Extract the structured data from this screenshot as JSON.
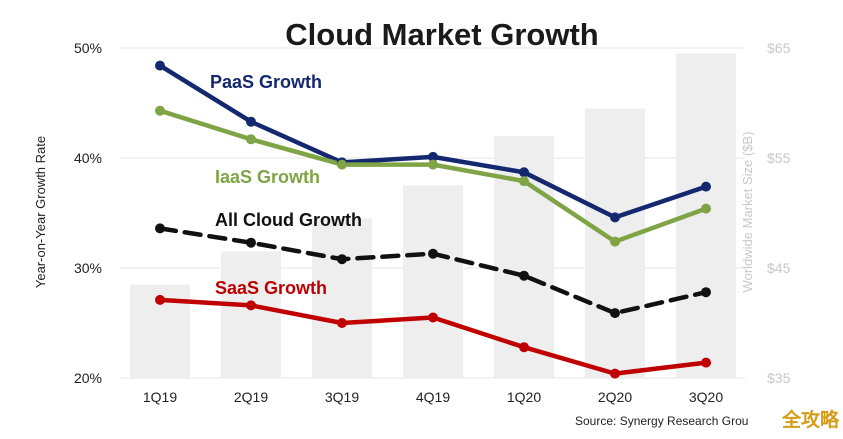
{
  "chart_data": {
    "type": "line",
    "title": "Cloud Market Growth",
    "categories": [
      "1Q19",
      "2Q19",
      "3Q19",
      "4Q19",
      "1Q20",
      "2Q20",
      "3Q20"
    ],
    "ylabel": "Year-on-Year Growth Rate",
    "ylim": [
      20,
      50
    ],
    "yticks": [
      "20%",
      "30%",
      "40%",
      "50%"
    ],
    "y2label": "Worldwide Market Size ($B)",
    "y2lim": [
      35,
      65
    ],
    "y2ticks": [
      "$35",
      "$45",
      "$55",
      "$65"
    ],
    "bars": {
      "name": "Worldwide Market Size ($B)",
      "values": [
        43.5,
        46.5,
        49.5,
        52.5,
        57,
        59.5,
        64.5
      ],
      "color": "#eeeeee"
    },
    "series": [
      {
        "name": "PaaS Growth",
        "values": [
          48.4,
          43.3,
          39.6,
          40.1,
          38.7,
          34.6,
          37.4
        ],
        "color": "#13286e",
        "dashed": false
      },
      {
        "name": "IaaS Growth",
        "values": [
          44.3,
          41.7,
          39.4,
          39.4,
          37.9,
          32.4,
          35.4
        ],
        "color": "#7ea446",
        "dashed": false
      },
      {
        "name": "All Cloud Growth",
        "values": [
          33.6,
          32.3,
          30.8,
          31.3,
          29.3,
          25.9,
          27.8
        ],
        "color": "#111111",
        "dashed": true
      },
      {
        "name": "SaaS Growth",
        "values": [
          27.1,
          26.6,
          25.0,
          25.5,
          22.8,
          20.4,
          21.4
        ],
        "color": "#c00000",
        "dashed": false
      }
    ],
    "source": "Source: Synergy Research Grou",
    "watermark": "全攻略"
  }
}
